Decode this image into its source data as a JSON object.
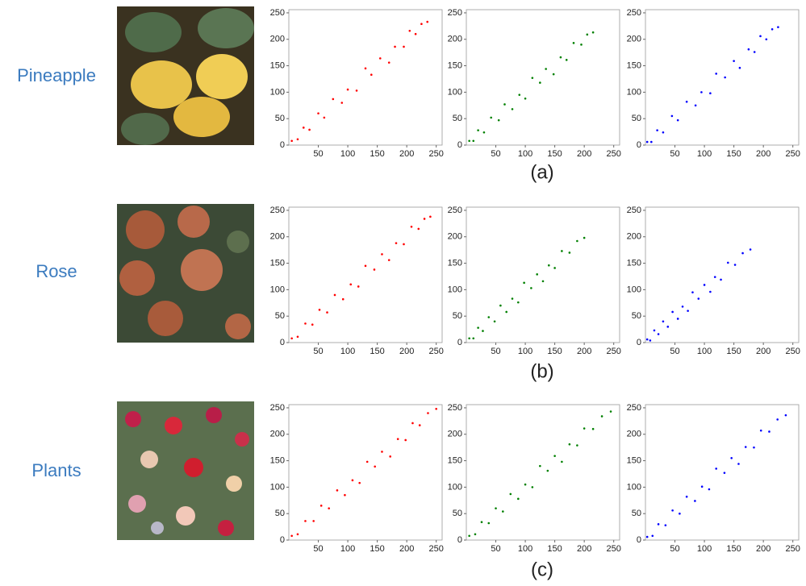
{
  "rows": [
    {
      "label": "Pineapple",
      "caption": "(a)"
    },
    {
      "label": "Rose",
      "caption": "(b)"
    },
    {
      "label": "Plants",
      "caption": "(c)"
    }
  ],
  "chart_data": [
    {
      "type": "scatter",
      "color": "#ff0000",
      "xlim": [
        0,
        260
      ],
      "ylim": [
        0,
        256
      ],
      "xticks": [
        50,
        100,
        150,
        200,
        250
      ],
      "yticks": [
        0,
        50,
        100,
        150,
        200,
        250
      ],
      "x": [
        5,
        15,
        25,
        35,
        50,
        60,
        75,
        90,
        100,
        115,
        130,
        140,
        155,
        170,
        180,
        195,
        205,
        215,
        225,
        235
      ],
      "y": [
        8,
        11,
        33,
        29,
        60,
        52,
        87,
        80,
        105,
        103,
        145,
        133,
        164,
        156,
        186,
        186,
        216,
        210,
        229,
        233
      ]
    },
    {
      "type": "scatter",
      "color": "#008000",
      "xlim": [
        0,
        260
      ],
      "ylim": [
        0,
        256
      ],
      "xticks": [
        50,
        100,
        150,
        200,
        250
      ],
      "yticks": [
        0,
        50,
        100,
        150,
        200,
        250
      ],
      "x": [
        5,
        12,
        20,
        30,
        42,
        55,
        65,
        78,
        90,
        100,
        112,
        125,
        135,
        148,
        160,
        170,
        182,
        195,
        205,
        215
      ],
      "y": [
        8,
        8,
        28,
        24,
        52,
        47,
        77,
        68,
        95,
        88,
        127,
        118,
        144,
        134,
        166,
        161,
        193,
        190,
        209,
        213
      ]
    },
    {
      "type": "scatter",
      "color": "#0000ff",
      "xlim": [
        0,
        260
      ],
      "ylim": [
        0,
        256
      ],
      "xticks": [
        50,
        100,
        150,
        200,
        250
      ],
      "yticks": [
        0,
        50,
        100,
        150,
        200,
        250
      ],
      "x": [
        3,
        10,
        20,
        30,
        45,
        55,
        70,
        85,
        95,
        110,
        120,
        135,
        150,
        160,
        175,
        185,
        195,
        205,
        215,
        225
      ],
      "y": [
        6,
        6,
        28,
        24,
        55,
        47,
        82,
        75,
        100,
        98,
        135,
        128,
        159,
        146,
        181,
        176,
        206,
        200,
        219,
        223
      ]
    },
    {
      "type": "scatter",
      "color": "#ff0000",
      "xlim": [
        0,
        260
      ],
      "ylim": [
        0,
        256
      ],
      "xticks": [
        50,
        100,
        150,
        200,
        250
      ],
      "yticks": [
        0,
        50,
        100,
        150,
        200,
        250
      ],
      "x": [
        5,
        15,
        28,
        40,
        52,
        65,
        78,
        92,
        105,
        118,
        130,
        145,
        158,
        170,
        182,
        195,
        208,
        220,
        230,
        240
      ],
      "y": [
        8,
        11,
        36,
        34,
        62,
        57,
        90,
        82,
        110,
        106,
        145,
        138,
        167,
        156,
        188,
        186,
        219,
        215,
        234,
        238
      ]
    },
    {
      "type": "scatter",
      "color": "#008000",
      "xlim": [
        0,
        260
      ],
      "ylim": [
        0,
        256
      ],
      "xticks": [
        50,
        100,
        150,
        200,
        250
      ],
      "yticks": [
        0,
        50,
        100,
        150,
        200,
        250
      ],
      "x": [
        5,
        12,
        20,
        28,
        38,
        48,
        58,
        68,
        78,
        88,
        98,
        110,
        120,
        130,
        140,
        150,
        162,
        175,
        188,
        200
      ],
      "y": [
        8,
        8,
        28,
        22,
        48,
        40,
        70,
        58,
        83,
        76,
        113,
        103,
        129,
        116,
        146,
        141,
        173,
        170,
        192,
        198
      ]
    },
    {
      "type": "scatter",
      "color": "#0000ff",
      "xlim": [
        0,
        260
      ],
      "ylim": [
        0,
        256
      ],
      "xticks": [
        50,
        100,
        150,
        200,
        250
      ],
      "yticks": [
        0,
        50,
        100,
        150,
        200,
        250
      ],
      "x": [
        3,
        8,
        15,
        22,
        30,
        38,
        46,
        55,
        63,
        72,
        80,
        90,
        100,
        110,
        118,
        128,
        140,
        152,
        165,
        178
      ],
      "y": [
        6,
        4,
        23,
        16,
        40,
        30,
        58,
        45,
        68,
        60,
        95,
        83,
        109,
        96,
        124,
        119,
        151,
        147,
        169,
        176
      ]
    },
    {
      "type": "scatter",
      "color": "#ff0000",
      "xlim": [
        0,
        260
      ],
      "ylim": [
        0,
        256
      ],
      "xticks": [
        50,
        100,
        150,
        200,
        250
      ],
      "yticks": [
        0,
        50,
        100,
        150,
        200,
        250
      ],
      "x": [
        5,
        15,
        28,
        42,
        55,
        68,
        82,
        95,
        108,
        120,
        133,
        146,
        158,
        172,
        185,
        198,
        210,
        222,
        236,
        250
      ],
      "y": [
        8,
        11,
        36,
        36,
        65,
        60,
        94,
        85,
        113,
        108,
        148,
        139,
        167,
        158,
        191,
        189,
        221,
        217,
        240,
        248
      ]
    },
    {
      "type": "scatter",
      "color": "#008000",
      "xlim": [
        0,
        260
      ],
      "ylim": [
        0,
        256
      ],
      "xticks": [
        50,
        100,
        150,
        200,
        250
      ],
      "yticks": [
        0,
        50,
        100,
        150,
        200,
        250
      ],
      "x": [
        5,
        15,
        26,
        38,
        50,
        62,
        75,
        88,
        100,
        112,
        125,
        138,
        150,
        162,
        175,
        188,
        200,
        215,
        230,
        245
      ],
      "y": [
        8,
        11,
        34,
        32,
        60,
        54,
        87,
        78,
        105,
        100,
        140,
        131,
        159,
        148,
        181,
        179,
        211,
        210,
        234,
        243
      ]
    },
    {
      "type": "scatter",
      "color": "#0000ff",
      "xlim": [
        0,
        260
      ],
      "ylim": [
        0,
        256
      ],
      "xticks": [
        50,
        100,
        150,
        200,
        250
      ],
      "yticks": [
        0,
        50,
        100,
        150,
        200,
        250
      ],
      "x": [
        3,
        12,
        22,
        34,
        46,
        58,
        70,
        84,
        96,
        108,
        120,
        134,
        146,
        158,
        170,
        184,
        196,
        210,
        224,
        238
      ],
      "y": [
        6,
        8,
        30,
        28,
        56,
        50,
        82,
        74,
        101,
        96,
        135,
        127,
        155,
        144,
        176,
        175,
        207,
        205,
        228,
        236
      ]
    }
  ]
}
